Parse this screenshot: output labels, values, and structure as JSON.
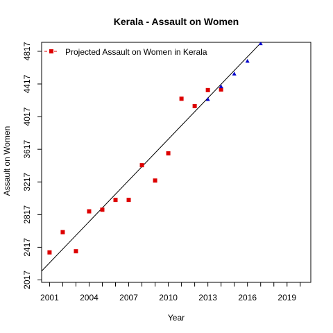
{
  "chart_data": {
    "type": "scatter",
    "title": "Kerala  -  Assault on Women",
    "xlabel": "Year",
    "ylabel": "Assault on Women",
    "xlim": [
      2000.4,
      2020.8
    ],
    "ylim": [
      1987,
      4927
    ],
    "x_ticks": [
      2001,
      2002,
      2003,
      2004,
      2005,
      2006,
      2007,
      2008,
      2009,
      2010,
      2011,
      2012,
      2013,
      2014,
      2015,
      2016,
      2017,
      2018,
      2019,
      2020
    ],
    "x_tick_labels": [
      "2001",
      "2004",
      "2007",
      "2010",
      "2013",
      "2016",
      "2019"
    ],
    "y_ticks": [
      2017,
      2417,
      2817,
      3217,
      3617,
      4017,
      4417,
      4817
    ],
    "y_tick_labels": [
      "2017",
      "2417",
      "2817",
      "3217",
      "3617",
      "4017",
      "4417",
      "4817"
    ],
    "grid": false,
    "legend": {
      "position": "top-left",
      "entries": [
        "Projected  Assault on Women  in  Kerala"
      ]
    },
    "series": [
      {
        "kind": "observed",
        "color": "#dd0000",
        "marker": "square",
        "x": [
          2001,
          2002,
          2003,
          2004,
          2005,
          2006,
          2007,
          2008,
          2009,
          2010,
          2011,
          2012,
          2013,
          2014
        ],
        "y": [
          2354,
          2602,
          2368,
          2857,
          2877,
          2997,
          2997,
          3422,
          3234,
          3567,
          4236,
          4146,
          4342,
          4349
        ]
      },
      {
        "kind": "projected",
        "color": "#0000cc",
        "marker": "triangle",
        "x": [
          2013,
          2014,
          2015,
          2016,
          2017
        ],
        "y": [
          4230,
          4386,
          4543,
          4699,
          4913
        ]
      },
      {
        "kind": "trend",
        "color": "#000000",
        "marker": "line",
        "x": [
          2000.4,
          2017.1
        ],
        "y": [
          2125,
          4935
        ]
      }
    ]
  }
}
